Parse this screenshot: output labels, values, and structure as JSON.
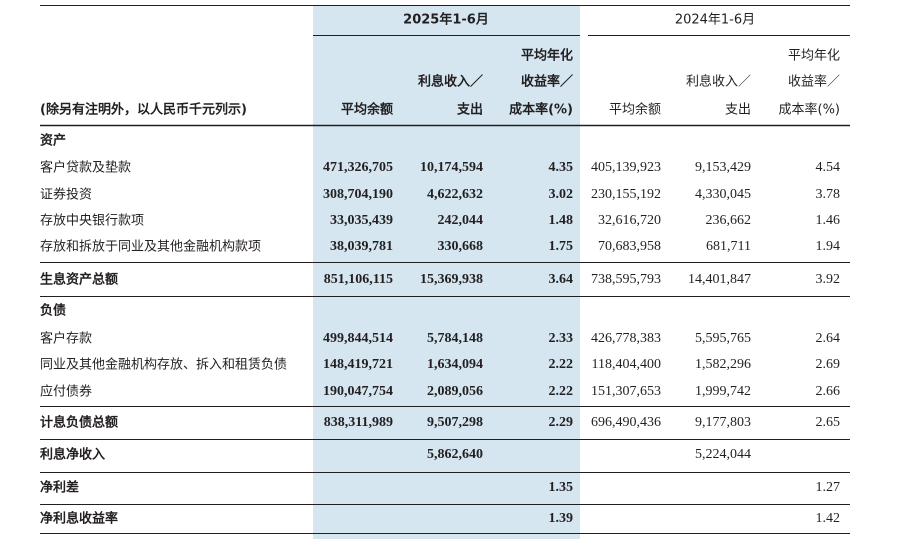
{
  "header": {
    "groups": [
      "2025年1-6月",
      "2024年1-6月"
    ],
    "note": "(除另有注明外，以人民币千元列示)",
    "columns": [
      [
        "平均余额"
      ],
      [
        "利息收入／",
        "支出"
      ],
      [
        "平均年化",
        "收益率／",
        "成本率(%)"
      ],
      [
        "平均余额"
      ],
      [
        "利息收入／",
        "支出"
      ],
      [
        "平均年化",
        "收益率／",
        "成本率(%)"
      ]
    ]
  },
  "table": {
    "rows": [
      {
        "label": "资产",
        "cells": [
          null,
          null,
          null,
          null,
          null,
          null
        ]
      },
      {
        "label": "客户贷款及垫款",
        "cells": [
          "471,326,705",
          "10,174,594",
          "4.35",
          "405,139,923",
          "9,153,429",
          "4.54"
        ]
      },
      {
        "label": "证券投资",
        "cells": [
          "308,704,190",
          "4,622,632",
          "3.02",
          "230,155,192",
          "4,330,045",
          "3.78"
        ]
      },
      {
        "label": "存放中央银行款项",
        "cells": [
          "33,035,439",
          "242,044",
          "1.48",
          "32,616,720",
          "236,662",
          "1.46"
        ]
      },
      {
        "label": "存放和拆放于同业及其他金融机构款项",
        "cells": [
          "38,039,781",
          "330,668",
          "1.75",
          "70,683,958",
          "681,711",
          "1.94"
        ]
      },
      {
        "label": "生息资产总额",
        "cells": [
          "851,106,115",
          "15,369,938",
          "3.64",
          "738,595,793",
          "14,401,847",
          "3.92"
        ]
      },
      {
        "label": "负债",
        "cells": [
          null,
          null,
          null,
          null,
          null,
          null
        ]
      },
      {
        "label": "客户存款",
        "cells": [
          "499,844,514",
          "5,784,148",
          "2.33",
          "426,778,383",
          "5,595,765",
          "2.64"
        ]
      },
      {
        "label": "同业及其他金融机构存放、拆入和租赁负债",
        "cells": [
          "148,419,721",
          "1,634,094",
          "2.22",
          "118,404,400",
          "1,582,296",
          "2.69"
        ]
      },
      {
        "label": "应付债券",
        "cells": [
          "190,047,754",
          "2,089,056",
          "2.22",
          "151,307,653",
          "1,999,742",
          "2.66"
        ]
      },
      {
        "label": "计息负债总额",
        "cells": [
          "838,311,989",
          "9,507,298",
          "2.29",
          "696,490,436",
          "9,177,803",
          "2.65"
        ]
      },
      {
        "label": "利息净收入",
        "cells": [
          null,
          "5,862,640",
          null,
          null,
          "5,224,044",
          null
        ]
      },
      {
        "label": "净利差",
        "cells": [
          null,
          null,
          "1.35",
          null,
          null,
          "1.27"
        ]
      },
      {
        "label": "净利息收益率",
        "cells": [
          null,
          null,
          "1.39",
          null,
          null,
          "1.42"
        ]
      }
    ]
  }
}
